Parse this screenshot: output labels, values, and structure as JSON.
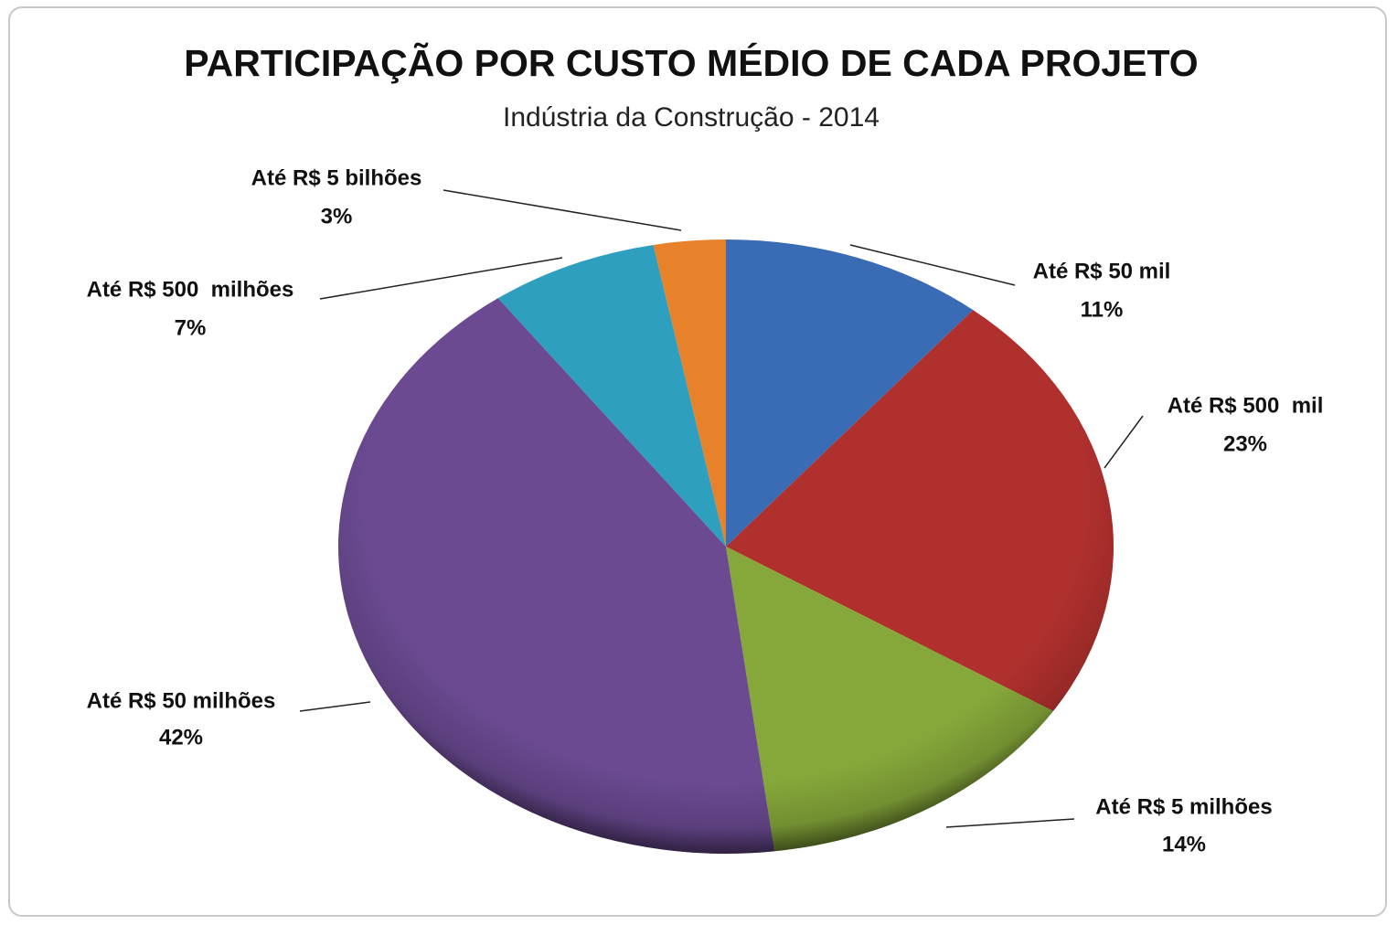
{
  "chart_data": {
    "type": "pie",
    "title": "PARTICIPAÇÃO POR CUSTO MÉDIO DE CADA PROJETO",
    "subtitle": "Indústria da Construção - 2014",
    "categories": [
      "Até R$ 50 mil",
      "Até R$ 500  mil",
      "Até R$ 5 milhões",
      "Até R$ 50 milhões",
      "Até R$ 500  milhões",
      "Até R$ 5 bilhões"
    ],
    "values": [
      11,
      23,
      14,
      42,
      7,
      3
    ],
    "value_labels": [
      "11%",
      "23%",
      "14%",
      "42%",
      "7%",
      "3%"
    ],
    "colors": [
      "#3a6bb5",
      "#b0302e",
      "#86a83a",
      "#6b4a92",
      "#2f9fc0",
      "#e8822a"
    ]
  }
}
